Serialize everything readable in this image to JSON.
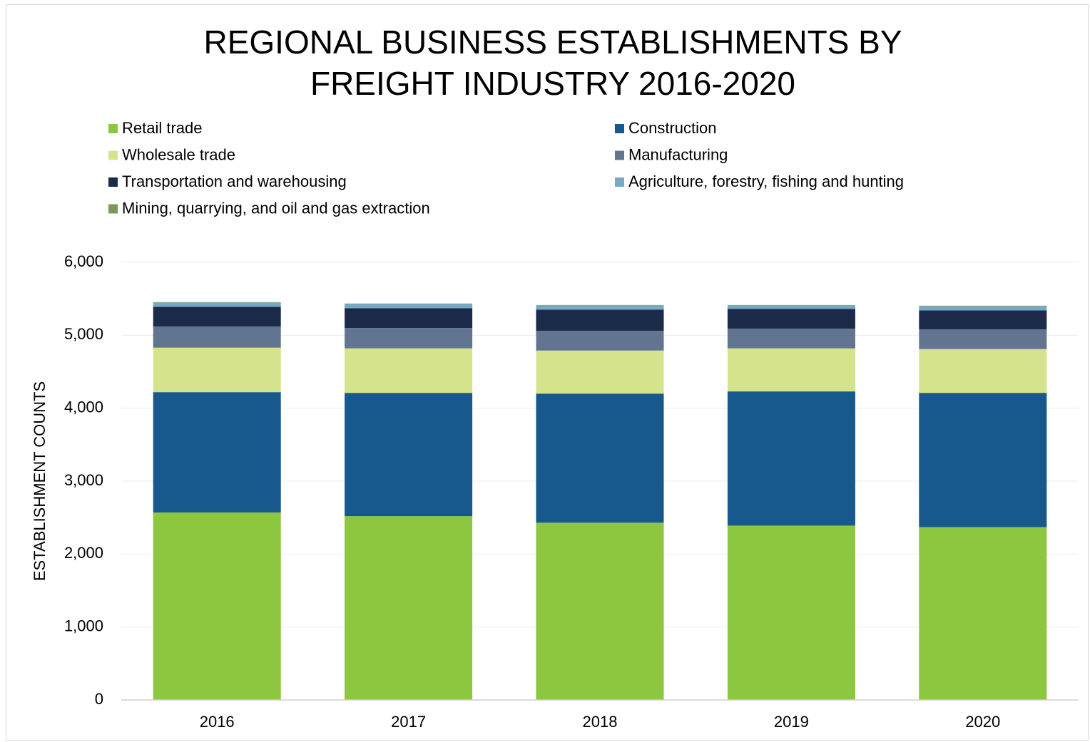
{
  "chart_data": {
    "type": "stacked_bar",
    "title": "REGIONAL BUSINESS ESTABLISHMENTS BY FREIGHT INDUSTRY 2016-2020",
    "y_label": "ESTABLISHMENT COUNTS",
    "categories": [
      "2016",
      "2017",
      "2018",
      "2019",
      "2020"
    ],
    "series": [
      {
        "name": "Retail trade",
        "color": "#8dc63f",
        "values": [
          2570,
          2520,
          2430,
          2390,
          2370
        ]
      },
      {
        "name": "Construction",
        "color": "#17598c",
        "values": [
          1650,
          1690,
          1770,
          1840,
          1840
        ]
      },
      {
        "name": "Wholesale trade",
        "color": "#d5e38c",
        "values": [
          610,
          610,
          590,
          590,
          600
        ]
      },
      {
        "name": "Manufacturing",
        "color": "#627590",
        "values": [
          290,
          280,
          270,
          270,
          270
        ]
      },
      {
        "name": "Transportation and warehousing",
        "color": "#1c2b4a",
        "values": [
          270,
          270,
          290,
          270,
          260
        ]
      },
      {
        "name": "Agriculture, forestry, fishing and hunting",
        "color": "#77a8c4",
        "values": [
          60,
          60,
          60,
          50,
          60
        ]
      },
      {
        "name": "Mining, quarrying, and oil and gas extraction",
        "color": "#7a9a5a",
        "values": [
          5,
          5,
          5,
          5,
          5
        ]
      }
    ],
    "ylim": [
      0,
      6000
    ],
    "yticks": [
      0,
      {
        "value": 1000,
        "label": "1,000"
      },
      {
        "value": 2000,
        "label": "2,000"
      },
      {
        "value": 3000,
        "label": "3,000"
      },
      {
        "value": 4000,
        "label": "4,000"
      },
      {
        "value": 5000,
        "label": "5,000"
      },
      {
        "value": 6000,
        "label": "6,000"
      }
    ],
    "grid": true
  }
}
